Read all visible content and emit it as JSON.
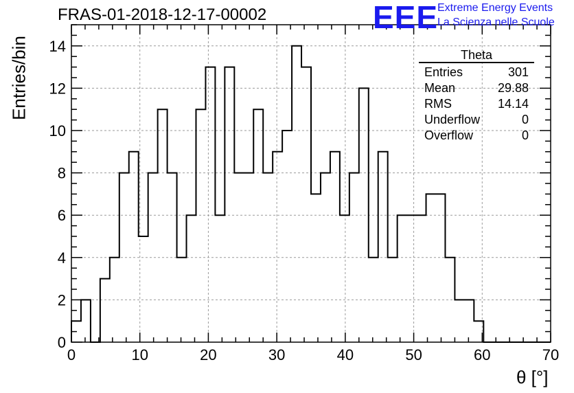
{
  "title": "FRAS-01-2018-12-17-00002",
  "logo": {
    "mark": "EEE",
    "line1": "Extreme Energy Events",
    "line2": "La Scienza nelle Scuole"
  },
  "stats": {
    "name": "Theta",
    "rows": [
      {
        "label": "Entries",
        "value": "301"
      },
      {
        "label": "Mean",
        "value": "29.88"
      },
      {
        "label": "RMS",
        "value": "14.14"
      },
      {
        "label": "Underflow",
        "value": "0"
      },
      {
        "label": "Overflow",
        "value": "0"
      }
    ]
  },
  "chart_data": {
    "type": "histogram",
    "title": "FRAS-01-2018-12-17-00002",
    "xlabel": "θ [°]",
    "ylabel": "Entries/bin",
    "xlim": [
      0,
      70
    ],
    "ylim": [
      0,
      15
    ],
    "xticks": [
      0,
      10,
      20,
      30,
      40,
      50,
      60,
      70
    ],
    "yticks": [
      0,
      2,
      4,
      6,
      8,
      10,
      12,
      14
    ],
    "grid": true,
    "bin_width": 1.4,
    "x_start": 0,
    "values": [
      1,
      2,
      0,
      3,
      4,
      8,
      9,
      5,
      8,
      11,
      8,
      4,
      6,
      11,
      13,
      6,
      13,
      8,
      8,
      11,
      8,
      9,
      10,
      14,
      13,
      7,
      8,
      9,
      6,
      8,
      12,
      4,
      9,
      4,
      6,
      6,
      6,
      7,
      7,
      4,
      2,
      2,
      1,
      0,
      0,
      0,
      0,
      0,
      0,
      0
    ]
  }
}
